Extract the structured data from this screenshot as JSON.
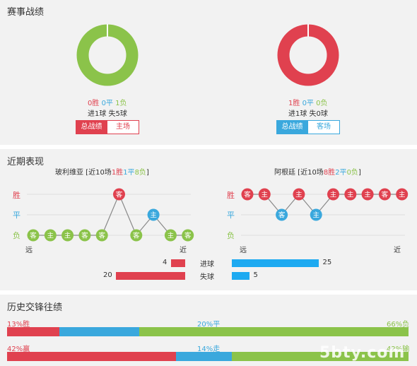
{
  "sections": {
    "record_title": "赛事战绩",
    "recent_title": "近期表现",
    "history_title": "历史交锋往绩"
  },
  "left_team": {
    "record": {
      "wins": "0胜",
      "draws": "0平",
      "losses": "1负"
    },
    "goals": "进1球 失5球",
    "tabs": [
      "总战绩",
      "主场"
    ],
    "donut": {
      "win": 0,
      "draw": 0,
      "loss": 1
    },
    "recent_label": "玻利维亚 [近10场",
    "recent_w": "1胜",
    "recent_d": "1平",
    "recent_l": "8负",
    "recent_close": "]",
    "recent_results": [
      {
        "result": "L",
        "venue": "客"
      },
      {
        "result": "L",
        "venue": "主"
      },
      {
        "result": "L",
        "venue": "主"
      },
      {
        "result": "L",
        "venue": "客"
      },
      {
        "result": "L",
        "venue": "客"
      },
      {
        "result": "W",
        "venue": "客"
      },
      {
        "result": "L",
        "venue": "客"
      },
      {
        "result": "D",
        "venue": "主"
      },
      {
        "result": "L",
        "venue": "主"
      },
      {
        "result": "L",
        "venue": "客"
      }
    ],
    "goals_for": 4,
    "goals_against": 20
  },
  "right_team": {
    "record": {
      "wins": "1胜",
      "draws": "0平",
      "losses": "0负"
    },
    "goals": "进1球 失0球",
    "tabs": [
      "总战绩",
      "客场"
    ],
    "donut": {
      "win": 1,
      "draw": 0,
      "loss": 0
    },
    "recent_label": "阿根廷 [近10场",
    "recent_w": "8胜",
    "recent_d": "2平",
    "recent_l": "0负",
    "recent_close": "]",
    "recent_results": [
      {
        "result": "W",
        "venue": "客"
      },
      {
        "result": "W",
        "venue": "主"
      },
      {
        "result": "D",
        "venue": "客"
      },
      {
        "result": "W",
        "venue": "主"
      },
      {
        "result": "D",
        "venue": "主"
      },
      {
        "result": "W",
        "venue": "主"
      },
      {
        "result": "W",
        "venue": "主"
      },
      {
        "result": "W",
        "venue": "主"
      },
      {
        "result": "W",
        "venue": "客"
      },
      {
        "result": "W",
        "venue": "主"
      }
    ],
    "goals_for": 25,
    "goals_against": 5
  },
  "axis": {
    "win": "胜",
    "draw": "平",
    "loss": "负",
    "far": "远",
    "near": "近"
  },
  "stats_labels": {
    "goals_for": "进球",
    "goals_against": "失球"
  },
  "history": {
    "wdl": {
      "win": "13%胜",
      "draw": "20%平",
      "loss": "66%负",
      "win_pct": 13,
      "draw_pct": 20,
      "loss_pct": 66
    },
    "handicap": {
      "win": "42%赢",
      "draw": "14%走",
      "loss": "42%输",
      "win_pct": 42,
      "draw_pct": 14,
      "loss_pct": 42
    }
  },
  "watermark": "5bty.com",
  "colors": {
    "win": "#e0414f",
    "draw": "#3aa8dd",
    "loss": "#8bc34a"
  }
}
